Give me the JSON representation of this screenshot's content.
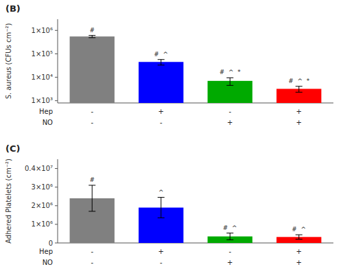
{
  "chart_data": [
    {
      "type": "bar",
      "title": "(B)",
      "y_label": "S. aureus (CFUs cm⁻²)",
      "values": [
        550000,
        45000,
        7000,
        3200
      ],
      "errors": [
        60000,
        12000,
        2500,
        900
      ],
      "colors": [
        "#808080",
        "#0000ff",
        "#00aa00",
        "#ff0000"
      ],
      "log": "y",
      "ylim": [
        800,
        3000000
      ],
      "yticks": [
        {
          "value": 1000,
          "label": "1×10³"
        },
        {
          "value": 10000,
          "label": "1×10⁴"
        },
        {
          "value": 100000,
          "label": "1×10⁵"
        },
        {
          "value": 1000000,
          "label": "1×10⁶"
        }
      ],
      "grid": false,
      "annotations": [
        "#",
        "#  ^",
        "#  ^  *",
        "#  ^  *"
      ],
      "category_rows": [
        {
          "name": "Hep",
          "labels": [
            "-",
            "+",
            "-",
            "+"
          ]
        },
        {
          "name": "NO",
          "labels": [
            "-",
            "-",
            "+",
            "+"
          ]
        }
      ]
    },
    {
      "type": "bar",
      "title": "(C)",
      "y_label": "Adhered Platelets (cm⁻²)",
      "values": [
        2400000,
        1900000,
        350000,
        320000
      ],
      "errors": [
        700000,
        550000,
        180000,
        120000
      ],
      "colors": [
        "#808080",
        "#0000ff",
        "#00aa00",
        "#ff0000"
      ],
      "ylim": [
        0,
        4500000
      ],
      "yticks": [
        0,
        {
          "value": 1000000,
          "label": "1×10⁶"
        },
        {
          "value": 2000000,
          "label": "2×10⁶"
        },
        {
          "value": 3000000,
          "label": "3×10⁶"
        },
        {
          "value": 4000000,
          "label": "0.4×10⁷"
        }
      ],
      "grid": false,
      "annotations": [
        "#",
        "^",
        "#  ^",
        "#  ^"
      ],
      "category_rows": [
        {
          "name": "Hep",
          "labels": [
            "-",
            "+",
            "-",
            "+"
          ]
        },
        {
          "name": "NO",
          "labels": [
            "-",
            "-",
            "+",
            "+"
          ]
        }
      ]
    }
  ]
}
